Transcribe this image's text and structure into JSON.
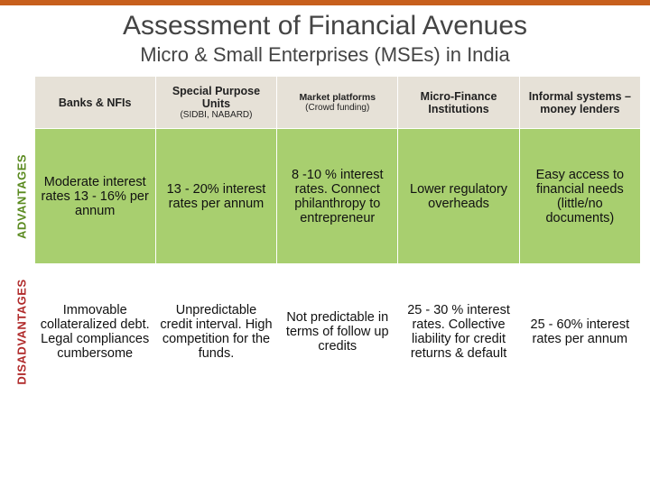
{
  "title": "Assessment of Financial Avenues",
  "subtitle": "Micro & Small Enterprises (MSEs) in India",
  "side_labels": {
    "advantages": "ADVANTAGES",
    "disadvantages": "DISADVANTAGES"
  },
  "columns": [
    {
      "header": "Banks & NFIs",
      "sub": ""
    },
    {
      "header": "Special Purpose Units",
      "sub": "(SIDBI, NABARD)"
    },
    {
      "header": "Market platforms",
      "sub": "(Crowd funding)"
    },
    {
      "header": "Micro-Finance Institutions",
      "sub": ""
    },
    {
      "header": "Informal systems – money lenders",
      "sub": ""
    }
  ],
  "rows": {
    "advantages": [
      "Moderate interest rates 13 - 16% per annum",
      "13 - 20% interest rates per annum",
      "8 -10 % interest rates. Connect philanthropy to entrepreneur",
      "Lower regulatory overheads",
      "Easy access to financial needs (little/no documents)"
    ],
    "disadvantages": [
      "Immovable collateralized debt. Legal compliances cumbersome",
      "Unpredictable credit interval. High competition for the funds.",
      "Not predictable in terms of follow up credits",
      "25 - 30 % interest rates. Collective liability for credit returns & default",
      "25 - 60% interest rates per annum"
    ]
  },
  "colors": {
    "topbar": "#c75f1c",
    "header_bg": "#e6e1d7",
    "adv_bg": "#a8cf6f",
    "dis_bg": "#ffffff",
    "adv_label": "#5a8a1f",
    "dis_label": "#b02a2a"
  }
}
